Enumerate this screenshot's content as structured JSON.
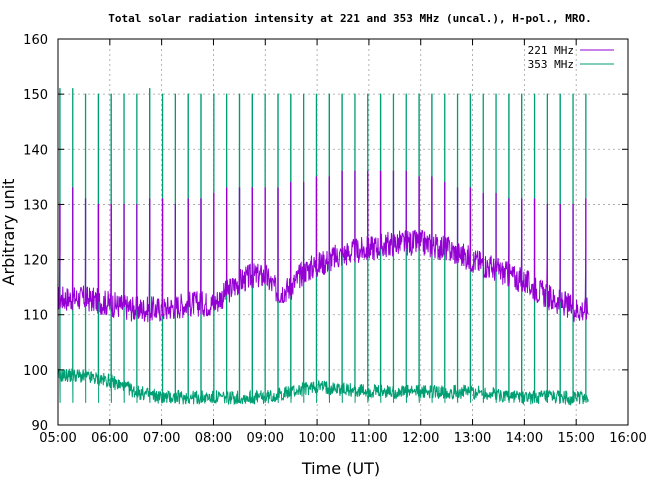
{
  "chart_data": {
    "type": "line",
    "title": "Total solar radiation intensity at 221 and 353 MHz (uncal.), H-pol., MRO.",
    "xlabel": "Time (UT)",
    "ylabel": "Arbitrary unit",
    "xlim": [
      "05:00",
      "16:00"
    ],
    "ylim": [
      90,
      160
    ],
    "x_ticks": [
      "05:00",
      "06:00",
      "07:00",
      "08:00",
      "09:00",
      "10:00",
      "11:00",
      "12:00",
      "13:00",
      "14:00",
      "15:00",
      "16:00"
    ],
    "y_ticks": [
      90,
      100,
      110,
      120,
      130,
      140,
      150,
      160
    ],
    "grid": true,
    "legend_position": "top-right",
    "series": [
      {
        "name": "221 MHz",
        "color": "#9400d3",
        "data_end": "15:14",
        "baseline": [
          {
            "x": "05:00",
            "y": 113
          },
          {
            "x": "05:30",
            "y": 113
          },
          {
            "x": "06:00",
            "y": 112
          },
          {
            "x": "06:30",
            "y": 111
          },
          {
            "x": "07:00",
            "y": 111
          },
          {
            "x": "07:30",
            "y": 112
          },
          {
            "x": "08:00",
            "y": 112
          },
          {
            "x": "08:30",
            "y": 116
          },
          {
            "x": "08:45",
            "y": 117
          },
          {
            "x": "09:00",
            "y": 117
          },
          {
            "x": "09:15",
            "y": 114
          },
          {
            "x": "09:30",
            "y": 115
          },
          {
            "x": "09:45",
            "y": 118
          },
          {
            "x": "10:00",
            "y": 119
          },
          {
            "x": "10:30",
            "y": 121
          },
          {
            "x": "11:00",
            "y": 122
          },
          {
            "x": "11:30",
            "y": 123
          },
          {
            "x": "12:00",
            "y": 123
          },
          {
            "x": "12:30",
            "y": 122
          },
          {
            "x": "13:00",
            "y": 120
          },
          {
            "x": "13:30",
            "y": 118
          },
          {
            "x": "14:00",
            "y": 116
          },
          {
            "x": "14:30",
            "y": 113
          },
          {
            "x": "15:00",
            "y": 111
          },
          {
            "x": "15:14",
            "y": 111
          }
        ],
        "spikes": {
          "lo": 122,
          "hi": [
            130,
            133,
            131,
            130,
            130,
            130,
            130,
            131,
            131,
            130,
            131,
            131,
            132,
            133,
            133,
            133,
            133,
            133,
            134,
            134,
            135,
            135,
            136,
            136,
            136,
            136,
            136,
            136,
            135,
            135,
            134,
            133,
            133,
            132,
            132,
            131,
            131,
            131,
            130,
            130,
            130,
            131
          ]
        }
      },
      {
        "name": "353 MHz",
        "color": "#009e73",
        "data_end": "15:14",
        "baseline": [
          {
            "x": "05:00",
            "y": 99
          },
          {
            "x": "05:20",
            "y": 99
          },
          {
            "x": "06:00",
            "y": 98
          },
          {
            "x": "06:30",
            "y": 96
          },
          {
            "x": "07:00",
            "y": 95
          },
          {
            "x": "08:00",
            "y": 95
          },
          {
            "x": "09:00",
            "y": 95
          },
          {
            "x": "09:30",
            "y": 96
          },
          {
            "x": "10:00",
            "y": 97
          },
          {
            "x": "11:00",
            "y": 96
          },
          {
            "x": "12:00",
            "y": 96
          },
          {
            "x": "13:00",
            "y": 96
          },
          {
            "x": "14:00",
            "y": 95
          },
          {
            "x": "15:00",
            "y": 95
          },
          {
            "x": "15:14",
            "y": 95
          }
        ],
        "spikes": {
          "lo": 94,
          "hi": [
            151,
            151,
            150,
            150,
            150,
            150,
            150,
            151,
            150,
            150,
            150,
            150,
            150,
            150,
            150,
            150,
            150,
            150,
            150,
            150,
            150,
            150,
            150,
            150,
            150,
            150,
            150,
            150,
            150,
            150,
            150,
            150,
            150,
            150,
            150,
            150,
            150,
            150,
            150,
            150,
            150,
            150
          ]
        }
      }
    ]
  },
  "colors": {
    "s221": "#9400d3",
    "s353": "#009e73",
    "grid": "#a0a0a0"
  }
}
